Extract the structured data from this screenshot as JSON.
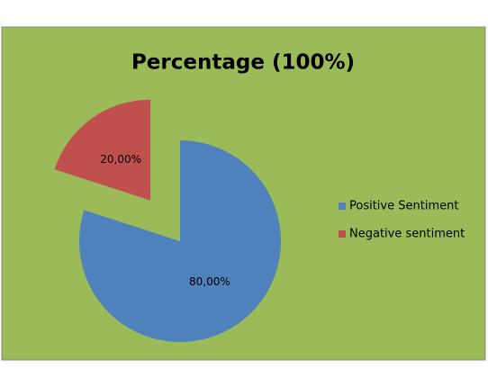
{
  "chart_data": {
    "type": "pie",
    "title": "Percentage (100%)",
    "categories": [
      "Positive Sentiment",
      "Negative sentiment"
    ],
    "values": [
      80,
      20
    ],
    "value_labels": [
      "80,00%",
      "20,00%"
    ],
    "colors": [
      "#4f81bd",
      "#c0504d"
    ],
    "legend": "right"
  }
}
